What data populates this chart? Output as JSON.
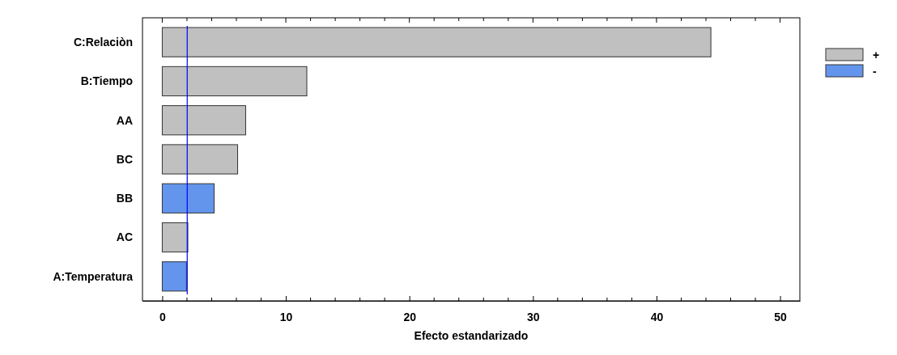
{
  "chart_data": {
    "type": "bar",
    "orientation": "horizontal",
    "xlabel": "Efecto estandarizado",
    "categories": [
      "C:Relaciòn",
      "B:Tiempo",
      "AA",
      "BC",
      "BB",
      "AC",
      "A:Temperatura"
    ],
    "series": [
      {
        "name": "+",
        "color": "#c0c0c0",
        "values": [
          44.4,
          11.7,
          6.75,
          6.1,
          null,
          2.07,
          null
        ]
      },
      {
        "name": "-",
        "color": "#6495ed",
        "values": [
          null,
          null,
          null,
          null,
          4.2,
          null,
          1.96
        ]
      }
    ],
    "xlim": [
      -1.6,
      51.6
    ],
    "xticks": [
      0,
      10,
      20,
      30,
      40,
      50
    ],
    "ref_lines": [
      {
        "axis": "x",
        "value": 2.02,
        "color": "#0000ff"
      }
    ],
    "legend": "top right",
    "grid": false
  }
}
